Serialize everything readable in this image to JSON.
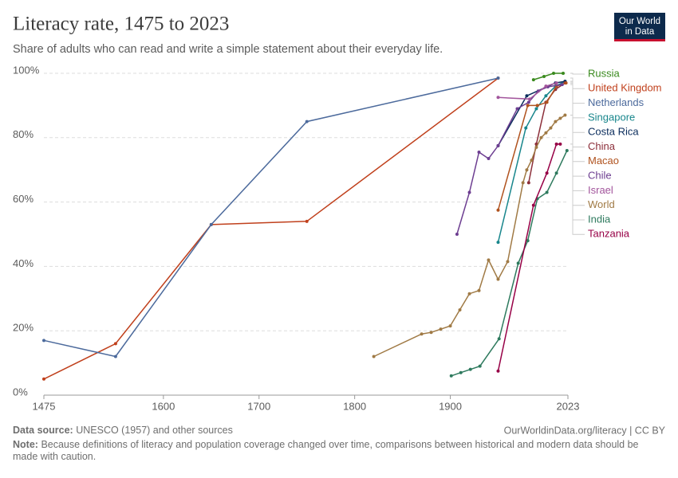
{
  "chart_data": {
    "type": "line",
    "title": "Literacy rate, 1475 to 2023",
    "subtitle": "Share of adults who can read and write a simple statement about their everyday life.",
    "logo": [
      "Our World",
      "in Data"
    ],
    "source_label": "Data source:",
    "source": "UNESCO (1957) and other sources",
    "url": "OurWorldinData.org/literacy | CC BY",
    "note_label": "Note:",
    "note": "Because definitions of literacy and population coverage changed over time, comparisons between historical and modern data should be made with caution.",
    "xlim": [
      1475,
      2023
    ],
    "xticks": [
      1475,
      1600,
      1700,
      1800,
      1900,
      2023
    ],
    "ylim": [
      0,
      100
    ],
    "yticks": [
      {
        "value": 0,
        "label": "0%"
      },
      {
        "value": 20,
        "label": "20%"
      },
      {
        "value": 40,
        "label": "40%"
      },
      {
        "value": 60,
        "label": "60%"
      },
      {
        "value": 80,
        "label": "80%"
      },
      {
        "value": 100,
        "label": "100%"
      }
    ],
    "grid": true,
    "series": [
      {
        "name": "Russia",
        "color": "#3a8a1e",
        "x": [
          1987,
          1998,
          2008,
          2018
        ],
        "values": [
          98,
          99,
          100,
          100
        ]
      },
      {
        "name": "United Kingdom",
        "color": "#c0401c",
        "x": [
          1475,
          1550,
          1650,
          1750,
          1950
        ],
        "values": [
          5,
          16,
          53,
          54,
          98.5
        ]
      },
      {
        "name": "Netherlands",
        "color": "#4c6a9c",
        "x": [
          1475,
          1550,
          1650,
          1750,
          1950
        ],
        "values": [
          17,
          12,
          53,
          85,
          98.5
        ]
      },
      {
        "name": "Singapore",
        "color": "#18868c",
        "x": [
          1950,
          1979,
          1990,
          2000,
          2010,
          2020
        ],
        "values": [
          47.5,
          83,
          89,
          93,
          96,
          97.5
        ]
      },
      {
        "name": "Costa Rica",
        "color": "#0a2c5c",
        "x": [
          1950,
          1980,
          2010,
          2020
        ],
        "values": [
          77.5,
          93,
          97,
          97.5
        ]
      },
      {
        "name": "China",
        "color": "#8c2f3a",
        "x": [
          1982,
          1990,
          2000,
          2010,
          2020
        ],
        "values": [
          66,
          78,
          91,
          95,
          97
        ]
      },
      {
        "name": "Macao",
        "color": "#b0521e",
        "x": [
          1950,
          1981,
          1991,
          2001,
          2011,
          2021
        ],
        "values": [
          57.5,
          90,
          90,
          91,
          96,
          97
        ]
      },
      {
        "name": "Chile",
        "color": "#6d3e91",
        "x": [
          1907,
          1920,
          1930,
          1940,
          1950,
          1970,
          1982,
          1992,
          2002,
          2017
        ],
        "values": [
          50,
          63,
          75.5,
          73.5,
          77.5,
          89,
          91,
          94.5,
          95.8,
          96.5
        ]
      },
      {
        "name": "Israel",
        "color": "#a2559c",
        "x": [
          1950,
          1983,
          2000,
          2011
        ],
        "values": [
          92.5,
          92,
          96,
          97
        ]
      },
      {
        "name": "World",
        "color": "#a07a45",
        "x": [
          1820,
          1870,
          1880,
          1890,
          1900,
          1910,
          1920,
          1930,
          1940,
          1950,
          1960,
          1976,
          1980,
          1985,
          1990,
          1995,
          2000,
          2005,
          2010,
          2015,
          2020
        ],
        "values": [
          12,
          19,
          19.5,
          20.5,
          21.5,
          26.5,
          31.5,
          32.5,
          42,
          36,
          41.5,
          66,
          70,
          73,
          77,
          80,
          81.5,
          83,
          85,
          86,
          87
        ]
      },
      {
        "name": "India",
        "color": "#2e7a5e",
        "x": [
          1901,
          1911,
          1921,
          1931,
          1951,
          1971,
          1981,
          1991,
          2001,
          2011,
          2022
        ],
        "values": [
          6,
          7,
          8,
          9,
          17.5,
          41,
          48,
          61,
          63,
          69,
          76
        ]
      },
      {
        "name": "Tanzania",
        "color": "#970046",
        "x": [
          1950,
          1987,
          2001,
          2011,
          2015
        ],
        "values": [
          7.5,
          59,
          69,
          78,
          78
        ]
      }
    ]
  }
}
